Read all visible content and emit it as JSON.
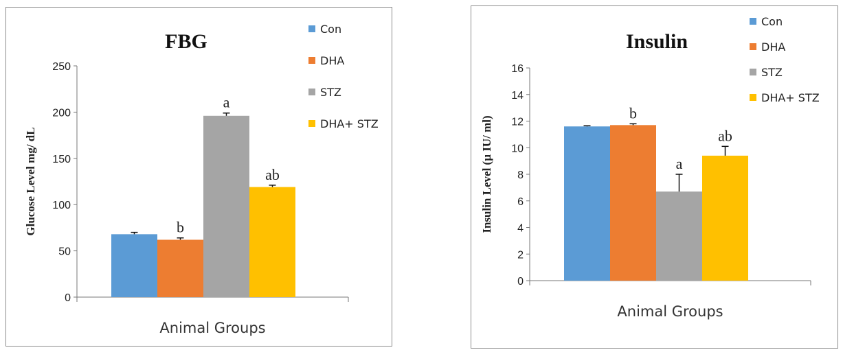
{
  "chart_data": [
    {
      "type": "bar",
      "title": "FBG",
      "xlabel": "Animal Groups",
      "ylabel": "Glucose Level mg/ dL",
      "ylim": [
        0,
        250
      ],
      "yticks": [
        0,
        50,
        100,
        150,
        200,
        250
      ],
      "series": [
        {
          "name": "Con",
          "color": "#5b9bd5",
          "value": 68,
          "error": 2,
          "annotation": ""
        },
        {
          "name": "DHA",
          "color": "#ed7d31",
          "value": 62,
          "error": 2,
          "annotation": "b"
        },
        {
          "name": "STZ",
          "color": "#a5a5a5",
          "value": 196,
          "error": 3,
          "annotation": "a"
        },
        {
          "name": "DHA+ STZ",
          "color": "#ffc000",
          "value": 119,
          "error": 2,
          "annotation": "ab"
        }
      ],
      "legend_position": "top-right",
      "grid": false
    },
    {
      "type": "bar",
      "title": "Insulin",
      "xlabel": "Animal Groups",
      "ylabel": "Insulin Level (µ IU/ ml)",
      "ylim": [
        0,
        16
      ],
      "yticks": [
        0,
        2,
        4,
        6,
        8,
        10,
        12,
        14,
        16
      ],
      "series": [
        {
          "name": "Con",
          "color": "#5b9bd5",
          "value": 11.6,
          "error": 0.05,
          "annotation": ""
        },
        {
          "name": "DHA",
          "color": "#ed7d31",
          "value": 11.7,
          "error": 0.1,
          "annotation": "b"
        },
        {
          "name": "STZ",
          "color": "#a5a5a5",
          "value": 6.7,
          "error": 1.3,
          "annotation": "a"
        },
        {
          "name": "DHA+ STZ",
          "color": "#ffc000",
          "value": 9.4,
          "error": 0.7,
          "annotation": "ab"
        }
      ],
      "legend_position": "top-right",
      "grid": false
    }
  ]
}
